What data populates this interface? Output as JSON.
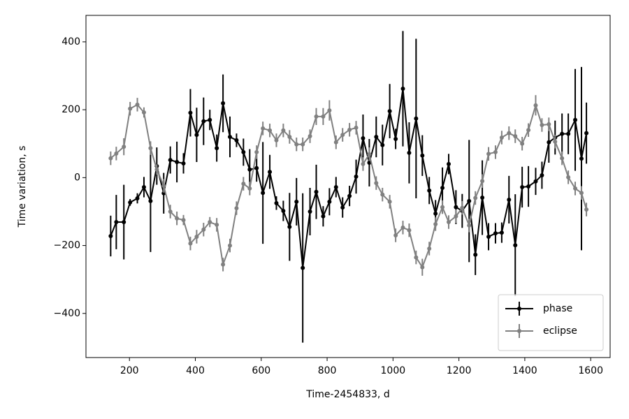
{
  "chart_data": {
    "type": "errorbar",
    "x_label": "Time-2454833, d",
    "y_label": "Time variation, s",
    "xlim": [
      68,
      1659
    ],
    "ylim": [
      -530,
      478
    ],
    "xticks": [
      200,
      400,
      600,
      800,
      1000,
      1200,
      1400,
      1600
    ],
    "yticks": [
      {
        "value": -400,
        "label": "−400"
      },
      {
        "value": -200,
        "label": "−200"
      },
      0,
      200,
      400
    ],
    "legend": "lower right",
    "x": [
      143,
      160,
      183,
      202,
      224,
      244,
      264,
      283,
      304,
      324,
      344,
      364,
      385,
      404,
      425,
      444,
      465,
      484,
      505,
      525,
      546,
      565,
      586,
      605,
      626,
      646,
      667,
      686,
      707,
      726,
      748,
      767,
      788,
      807,
      827,
      847,
      868,
      888,
      909,
      928,
      949,
      968,
      990,
      1008,
      1030,
      1049,
      1070,
      1089,
      1110,
      1129,
      1150,
      1169,
      1191,
      1210,
      1231,
      1250,
      1271,
      1290,
      1311,
      1330,
      1352,
      1371,
      1392,
      1411,
      1433,
      1452,
      1473,
      1492,
      1513,
      1532,
      1553,
      1572,
      1587
    ],
    "series": [
      {
        "name": "phase",
        "color": "#000000",
        "values": [
          -172,
          -131,
          -131,
          -73,
          -61,
          -28,
          -69,
          34,
          -46,
          52,
          46,
          42,
          191,
          126,
          166,
          170,
          87,
          219,
          120,
          110,
          75,
          24,
          28,
          -45,
          17,
          -75,
          -98,
          -145,
          -71,
          -266,
          -100,
          -42,
          -114,
          -71,
          -28,
          -88,
          -54,
          3,
          116,
          44,
          120,
          96,
          196,
          114,
          262,
          73,
          174,
          65,
          -38,
          -106,
          -30,
          40,
          -87,
          -98,
          -69,
          -227,
          -59,
          -174,
          -164,
          -162,
          -65,
          -199,
          -28,
          -26,
          -11,
          7,
          104,
          118,
          129,
          129,
          170,
          56,
          131
        ],
        "errors": [
          60,
          80,
          110,
          10,
          15,
          30,
          150,
          55,
          60,
          40,
          60,
          30,
          70,
          80,
          70,
          30,
          40,
          85,
          60,
          20,
          40,
          60,
          40,
          150,
          50,
          20,
          30,
          100,
          70,
          220,
          70,
          80,
          30,
          40,
          30,
          30,
          30,
          50,
          70,
          70,
          60,
          60,
          80,
          30,
          170,
          90,
          235,
          60,
          40,
          40,
          60,
          30,
          50,
          50,
          180,
          60,
          110,
          40,
          30,
          30,
          70,
          150,
          60,
          60,
          40,
          40,
          60,
          50,
          60,
          60,
          150,
          270,
          90
        ]
      },
      {
        "name": "eclipse",
        "color": "#808080",
        "values": [
          57,
          71,
          91,
          203,
          215,
          192,
          87,
          24,
          -24,
          -100,
          -120,
          -125,
          -194,
          -174,
          -153,
          -131,
          -139,
          -256,
          -200,
          -90,
          -18,
          -32,
          75,
          145,
          139,
          110,
          139,
          120,
          98,
          98,
          122,
          180,
          180,
          198,
          104,
          126,
          141,
          147,
          40,
          69,
          -16,
          -50,
          -71,
          -170,
          -147,
          -155,
          -235,
          -264,
          -209,
          -137,
          -87,
          -131,
          -114,
          -89,
          -141,
          -60,
          -10,
          70,
          75,
          118,
          131,
          122,
          100,
          140,
          213,
          155,
          157,
          106,
          57,
          1,
          -32,
          -45,
          -94
        ],
        "errors": [
          20,
          20,
          25,
          20,
          20,
          15,
          20,
          15,
          20,
          20,
          20,
          15,
          20,
          20,
          20,
          15,
          20,
          20,
          20,
          20,
          20,
          20,
          20,
          20,
          20,
          20,
          20,
          20,
          20,
          20,
          20,
          25,
          25,
          30,
          20,
          20,
          20,
          20,
          20,
          20,
          20,
          20,
          20,
          20,
          20,
          20,
          20,
          25,
          20,
          20,
          20,
          20,
          20,
          20,
          20,
          20,
          20,
          20,
          20,
          20,
          20,
          20,
          20,
          20,
          30,
          20,
          20,
          20,
          20,
          20,
          20,
          20,
          20
        ]
      }
    ]
  }
}
